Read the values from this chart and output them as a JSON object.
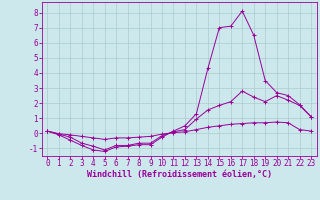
{
  "xlabel": "Windchill (Refroidissement éolien,°C)",
  "background_color": "#cce8ec",
  "grid_color": "#aacccc",
  "line_color": "#990099",
  "xlim": [
    -0.5,
    23.5
  ],
  "ylim": [
    -1.5,
    8.7
  ],
  "yticks": [
    -1,
    0,
    1,
    2,
    3,
    4,
    5,
    6,
    7,
    8
  ],
  "xticks": [
    0,
    1,
    2,
    3,
    4,
    5,
    6,
    7,
    8,
    9,
    10,
    11,
    12,
    13,
    14,
    15,
    16,
    17,
    18,
    19,
    20,
    21,
    22,
    23
  ],
  "line1_x": [
    0,
    1,
    2,
    3,
    4,
    5,
    6,
    7,
    8,
    9,
    10,
    11,
    12,
    13,
    14,
    15,
    16,
    17,
    18,
    19,
    20,
    21,
    22,
    23
  ],
  "line1_y": [
    0.15,
    -0.1,
    -0.45,
    -0.8,
    -1.1,
    -1.2,
    -0.9,
    -0.85,
    -0.75,
    -0.75,
    -0.25,
    0.15,
    0.5,
    1.3,
    4.3,
    7.0,
    7.1,
    8.1,
    6.5,
    3.5,
    2.7,
    2.5,
    1.9,
    1.1
  ],
  "line2_x": [
    0,
    1,
    2,
    3,
    4,
    5,
    6,
    7,
    8,
    9,
    10,
    11,
    12,
    13,
    14,
    15,
    16,
    17,
    18,
    19,
    20,
    21,
    22,
    23
  ],
  "line2_y": [
    0.15,
    -0.05,
    -0.25,
    -0.65,
    -0.85,
    -1.1,
    -0.8,
    -0.8,
    -0.65,
    -0.65,
    -0.15,
    0.1,
    0.25,
    0.95,
    1.55,
    1.85,
    2.1,
    2.8,
    2.4,
    2.1,
    2.5,
    2.2,
    1.85,
    1.1
  ],
  "line3_x": [
    0,
    1,
    2,
    3,
    4,
    5,
    6,
    7,
    8,
    9,
    10,
    11,
    12,
    13,
    14,
    15,
    16,
    17,
    18,
    19,
    20,
    21,
    22,
    23
  ],
  "line3_y": [
    0.15,
    -0.02,
    -0.1,
    -0.2,
    -0.3,
    -0.4,
    -0.3,
    -0.3,
    -0.25,
    -0.2,
    -0.05,
    0.05,
    0.1,
    0.25,
    0.4,
    0.5,
    0.6,
    0.65,
    0.7,
    0.7,
    0.75,
    0.7,
    0.25,
    0.15
  ],
  "tick_fontsize": 5.5,
  "xlabel_fontsize": 6.0
}
